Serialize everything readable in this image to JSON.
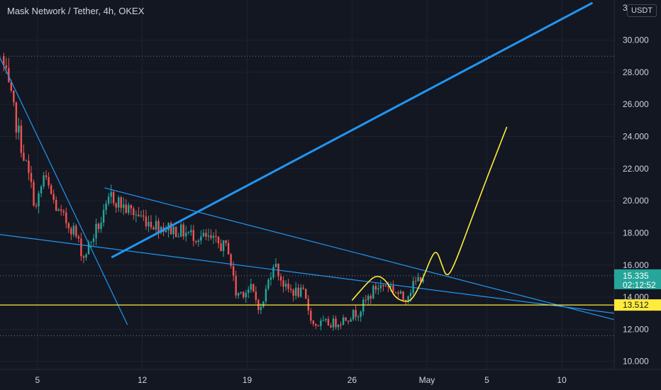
{
  "header": {
    "symbol": "Mask Network / Tether, 4h, OKEX",
    "currency": "USDT",
    "top_tick": "3"
  },
  "colors": {
    "background": "#131722",
    "grid": "#1e222d",
    "text": "#d1d4dc",
    "up": "#26a69a",
    "down": "#ef5350",
    "trendline": "#2196f3",
    "projection": "#ffeb3b",
    "price_label_bg": "#26a69a",
    "support_label_bg": "#ffeb3b"
  },
  "chart_data": {
    "type": "candlestick",
    "title": "Mask Network / Tether, 4h, OKEX",
    "y_unit": "USDT",
    "ylim": [
      9.5,
      32.5
    ],
    "y_ticks": [
      "10.000",
      "12.000",
      "14.000",
      "16.000",
      "18.000",
      "20.000",
      "22.000",
      "24.000",
      "26.000",
      "28.000",
      "30.000"
    ],
    "x_range": [
      "2021-04-02T12:00",
      "2021-05-13T12:00"
    ],
    "x_ticks": [
      {
        "label": "5",
        "date": "2021-04-05"
      },
      {
        "label": "12",
        "date": "2021-04-12"
      },
      {
        "label": "19",
        "date": "2021-04-19"
      },
      {
        "label": "26",
        "date": "2021-04-26"
      },
      {
        "label": "May",
        "date": "2021-05-01"
      },
      {
        "label": "5",
        "date": "2021-05-05"
      },
      {
        "label": "10",
        "date": "2021-05-10"
      }
    ],
    "grid": true,
    "anchors": [
      {
        "date": "2021-04-02T16:00",
        "price": 29.0
      },
      {
        "date": "2021-04-03T12:00",
        "price": 25.5
      },
      {
        "date": "2021-04-05T00:00",
        "price": 19.5
      },
      {
        "date": "2021-04-05T12:00",
        "price": 21.5
      },
      {
        "date": "2021-04-06T12:00",
        "price": 19.2
      },
      {
        "date": "2021-04-07T12:00",
        "price": 18.2
      },
      {
        "date": "2021-04-08T04:00",
        "price": 16.5
      },
      {
        "date": "2021-04-09T00:00",
        "price": 18.2
      },
      {
        "date": "2021-04-09T12:00",
        "price": 19.0
      },
      {
        "date": "2021-04-10T00:00",
        "price": 20.3
      },
      {
        "date": "2021-04-11T00:00",
        "price": 19.5
      },
      {
        "date": "2021-04-13T00:00",
        "price": 18.5
      },
      {
        "date": "2021-04-15T00:00",
        "price": 18.0
      },
      {
        "date": "2021-04-16T12:00",
        "price": 17.6
      },
      {
        "date": "2021-04-17T20:00",
        "price": 17.0
      },
      {
        "date": "2021-04-18T08:00",
        "price": 14.2
      },
      {
        "date": "2021-04-19T08:00",
        "price": 14.5
      },
      {
        "date": "2021-04-20T00:00",
        "price": 13.2
      },
      {
        "date": "2021-04-20T20:00",
        "price": 16.2
      },
      {
        "date": "2021-04-21T16:00",
        "price": 14.5
      },
      {
        "date": "2021-04-22T20:00",
        "price": 14.2
      },
      {
        "date": "2021-04-23T12:00",
        "price": 12.3
      },
      {
        "date": "2021-04-25T00:00",
        "price": 12.4
      },
      {
        "date": "2021-04-26T12:00",
        "price": 13.1
      },
      {
        "date": "2021-04-27T16:00",
        "price": 14.6
      },
      {
        "date": "2021-04-28T12:00",
        "price": 14.8
      },
      {
        "date": "2021-04-29T12:00",
        "price": 13.9
      },
      {
        "date": "2021-04-30T16:00",
        "price": 15.3
      }
    ],
    "last_price": "15.335",
    "countdown": "02:12:52",
    "support_level": "13.512",
    "drawings": [
      {
        "kind": "line",
        "style": "thick",
        "points": [
          [
            "2021-04-10T00:00",
            16.5
          ],
          [
            "2021-05-12T00:00",
            32.3
          ]
        ]
      },
      {
        "kind": "line",
        "points": [
          [
            "2021-04-02T12:00",
            28.9
          ],
          [
            "2021-04-11T00:00",
            12.3
          ]
        ]
      },
      {
        "kind": "line",
        "points": [
          [
            "2021-04-02T12:00",
            17.9
          ],
          [
            "2021-05-13T12:00",
            13.0
          ]
        ]
      },
      {
        "kind": "line",
        "points": [
          [
            "2021-04-09T12:00",
            20.8
          ],
          [
            "2021-05-13T12:00",
            12.6
          ]
        ]
      },
      {
        "kind": "horizontal",
        "price": 13.512
      },
      {
        "kind": "path",
        "points": [
          [
            "2021-04-26T00:00",
            13.8
          ],
          [
            "2021-04-27T00:00",
            14.9
          ],
          [
            "2021-04-27T16:00",
            15.4
          ],
          [
            "2021-04-28T08:00",
            15.0
          ],
          [
            "2021-04-28T20:00",
            14.0
          ],
          [
            "2021-04-29T12:00",
            13.7
          ],
          [
            "2021-04-30T00:00",
            13.8
          ],
          [
            "2021-04-30T16:00",
            15.0
          ],
          [
            "2021-05-01T08:00",
            16.6
          ],
          [
            "2021-05-01T16:00",
            16.9
          ],
          [
            "2021-05-02T00:00",
            16.0
          ],
          [
            "2021-05-02T08:00",
            15.2
          ],
          [
            "2021-05-02T20:00",
            16.0
          ],
          [
            "2021-05-03T20:00",
            18.5
          ],
          [
            "2021-05-04T20:00",
            21.0
          ],
          [
            "2021-05-05T16:00",
            23.0
          ],
          [
            "2021-05-06T08:00",
            24.6
          ]
        ]
      }
    ]
  }
}
